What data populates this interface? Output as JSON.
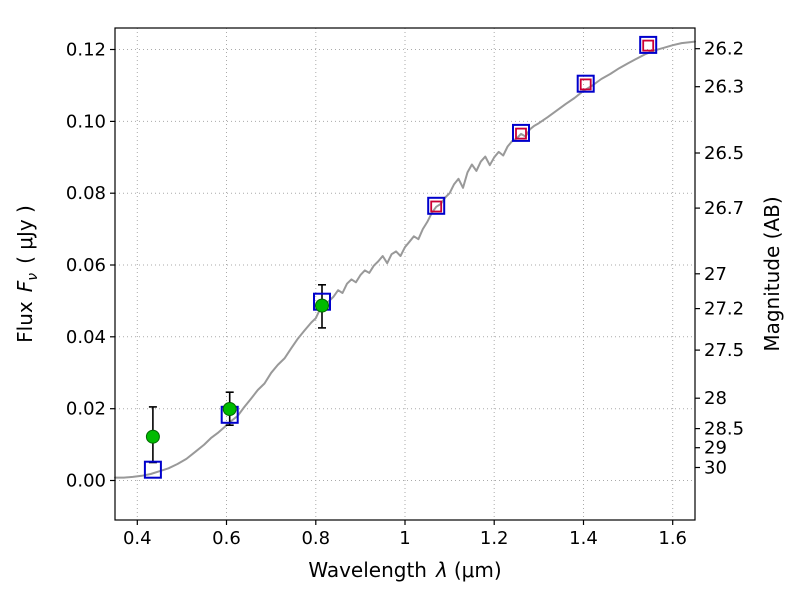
{
  "labels": {
    "wavelength_prefix": "Wavelength",
    "wavelength_symbol": "λ",
    "wavelength_units": "(μm)",
    "flux_prefix": "Flux",
    "flux_symbol": "F",
    "flux_sub": "ν",
    "flux_units": "( μJy )",
    "magnitude_label": "Magnitude (AB)"
  },
  "chart_data": {
    "type": "line",
    "title": "",
    "xlabel": "Wavelength λ (μm)",
    "ylabel": "Flux Fν ( μJy )",
    "ylabel_right": "Magnitude (AB)",
    "xlim": [
      0.35,
      1.65
    ],
    "ylim": [
      -0.011,
      0.126
    ],
    "x_ticks": [
      0.4,
      0.6,
      0.8,
      1.0,
      1.2,
      1.4,
      1.6
    ],
    "x_tick_labels": [
      "0.4",
      "0.6",
      "0.8",
      "1",
      "1.2",
      "1.4",
      "1.6"
    ],
    "y_ticks": [
      0.0,
      0.02,
      0.04,
      0.06,
      0.08,
      0.1,
      0.12
    ],
    "y_tick_labels": [
      "0.00",
      "0.02",
      "0.04",
      "0.06",
      "0.08",
      "0.10",
      "0.12"
    ],
    "right_axis": {
      "label": "Magnitude (AB)",
      "ab_zeropoint_mag": 23.9,
      "mag_ticks": [
        26.2,
        26.3,
        26.5,
        26.7,
        27,
        27.2,
        27.5,
        28,
        28.5,
        29,
        30
      ],
      "mag_tick_labels": [
        "26.2",
        "26.3",
        "26.5",
        "26.7",
        "27",
        "27.2",
        "27.5",
        "28",
        "28.5",
        "29",
        "30"
      ]
    },
    "grid": {
      "on": true,
      "style": "dotted",
      "color": "#aaaaaa"
    },
    "frame_color": "#000000",
    "series": [
      {
        "name": "model-spectrum",
        "type": "line",
        "color": "#999999",
        "width": 2,
        "x": [
          0.35,
          0.37,
          0.39,
          0.41,
          0.43,
          0.45,
          0.47,
          0.49,
          0.51,
          0.53,
          0.55,
          0.565,
          0.58,
          0.595,
          0.61,
          0.625,
          0.64,
          0.655,
          0.67,
          0.685,
          0.7,
          0.715,
          0.73,
          0.745,
          0.76,
          0.775,
          0.79,
          0.8,
          0.81,
          0.82,
          0.83,
          0.84,
          0.85,
          0.86,
          0.87,
          0.88,
          0.89,
          0.9,
          0.91,
          0.92,
          0.93,
          0.94,
          0.95,
          0.96,
          0.97,
          0.98,
          0.99,
          1.0,
          1.01,
          1.02,
          1.03,
          1.04,
          1.05,
          1.06,
          1.07,
          1.08,
          1.09,
          1.1,
          1.11,
          1.12,
          1.13,
          1.14,
          1.15,
          1.16,
          1.17,
          1.18,
          1.19,
          1.2,
          1.21,
          1.22,
          1.23,
          1.24,
          1.25,
          1.26,
          1.27,
          1.28,
          1.29,
          1.3,
          1.32,
          1.34,
          1.36,
          1.38,
          1.4,
          1.42,
          1.44,
          1.46,
          1.48,
          1.5,
          1.52,
          1.54,
          1.56,
          1.58,
          1.6,
          1.62,
          1.65
        ],
        "y": [
          0.0008,
          0.0008,
          0.001,
          0.0013,
          0.0018,
          0.0026,
          0.0034,
          0.0046,
          0.006,
          0.008,
          0.01,
          0.0118,
          0.0132,
          0.0148,
          0.0165,
          0.018,
          0.0205,
          0.0228,
          0.0252,
          0.027,
          0.03,
          0.0322,
          0.034,
          0.0368,
          0.0395,
          0.0418,
          0.044,
          0.0452,
          0.0478,
          0.049,
          0.05,
          0.0512,
          0.053,
          0.0522,
          0.0548,
          0.056,
          0.0552,
          0.0572,
          0.0585,
          0.0578,
          0.0598,
          0.061,
          0.0625,
          0.0605,
          0.063,
          0.0638,
          0.0625,
          0.065,
          0.0665,
          0.068,
          0.0672,
          0.07,
          0.072,
          0.0745,
          0.0762,
          0.077,
          0.0788,
          0.08,
          0.0825,
          0.084,
          0.0815,
          0.0858,
          0.088,
          0.0862,
          0.0888,
          0.0902,
          0.0878,
          0.09,
          0.0915,
          0.0905,
          0.093,
          0.0945,
          0.0952,
          0.0965,
          0.0958,
          0.0978,
          0.0988,
          0.0995,
          0.1012,
          0.103,
          0.1048,
          0.1065,
          0.1085,
          0.11,
          0.1118,
          0.1132,
          0.1148,
          0.1162,
          0.1175,
          0.1188,
          0.1198,
          0.1205,
          0.1212,
          0.1218,
          0.1222
        ]
      },
      {
        "name": "observed-optical",
        "type": "scatter",
        "marker": "circle-filled",
        "color": "#00bb00",
        "edge_color": "#006600",
        "error_color": "#000000",
        "size": 13,
        "points": [
          {
            "x": 0.435,
            "y": 0.0122,
            "err_lo": 0.0072,
            "err_hi": 0.0083
          },
          {
            "x": 0.607,
            "y": 0.0199,
            "err_lo": 0.0045,
            "err_hi": 0.0047
          },
          {
            "x": 0.814,
            "y": 0.0487,
            "err_lo": 0.0062,
            "err_hi": 0.0058
          }
        ]
      },
      {
        "name": "model-photometry",
        "type": "scatter",
        "marker": "square-open",
        "color": "#0000cc",
        "size": 16,
        "points": [
          [
            0.435,
            0.003
          ],
          [
            0.607,
            0.0183
          ],
          [
            0.814,
            0.0498
          ],
          [
            1.07,
            0.0765
          ],
          [
            1.26,
            0.0968
          ],
          [
            1.405,
            0.1105
          ],
          [
            1.545,
            0.1213
          ]
        ]
      },
      {
        "name": "observed-infrared",
        "type": "scatter",
        "marker": "square-open",
        "color": "#cc0033",
        "size": 10,
        "points": [
          [
            1.07,
            0.0763
          ],
          [
            1.26,
            0.0966
          ],
          [
            1.405,
            0.1103
          ],
          [
            1.545,
            0.1211
          ]
        ]
      }
    ]
  }
}
